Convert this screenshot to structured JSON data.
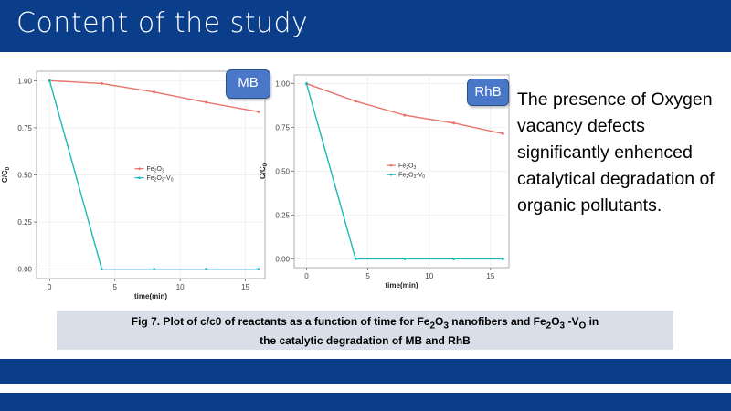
{
  "slide": {
    "title": "Content of the study",
    "side_text": "The presence of Oxygen vacancy defects significantly enhenced catalytical degradation of organic pollutants.",
    "caption_line1_parts": [
      "Fig 7. Plot of c/c0 of reactants as a function of time for Fe",
      "2",
      "O",
      "3",
      " nanofibers and Fe",
      "2",
      "O",
      "3",
      " -V",
      "O",
      " in"
    ],
    "caption_line2": "the catalytic degradation of MB and RhB"
  },
  "colors": {
    "header": "#0a3d8a",
    "fe2o3": "#e8736c",
    "fe2o3_vo": "#1fb8b8",
    "tag": "#4a78c8",
    "caption_bg": "#d8dfe8"
  },
  "chart_data": [
    {
      "type": "line",
      "tag": "MB",
      "xlabel": "time(min)",
      "ylabel_main": "C/C",
      "ylabel_sub": "0",
      "xlim": [
        -1,
        16.5
      ],
      "ylim": [
        -0.05,
        1.05
      ],
      "xticks": [
        0,
        5,
        10,
        15
      ],
      "yticks": [
        0.0,
        0.25,
        0.5,
        0.75,
        1.0
      ],
      "ytick_labels": [
        "0.00",
        "0.25",
        "0.50",
        "0.75",
        "1.00"
      ],
      "legend_position": "center",
      "grid": true,
      "series": [
        {
          "name": "Fe2O3",
          "label_parts": [
            "Fe",
            "2",
            "O",
            "3"
          ],
          "x": [
            0,
            4,
            8,
            12,
            16
          ],
          "y": [
            1.0,
            0.985,
            0.94,
            0.885,
            0.835
          ]
        },
        {
          "name": "Fe2O3-V0",
          "label_parts": [
            "Fe",
            "2",
            "O",
            "3",
            "-V",
            "0"
          ],
          "x": [
            0,
            4,
            8,
            12,
            16
          ],
          "y": [
            1.0,
            0.0,
            0.0,
            0.0,
            0.0
          ]
        }
      ]
    },
    {
      "type": "line",
      "tag": "RhB",
      "xlabel": "time(min)",
      "ylabel_main": "C/C",
      "ylabel_sub": "0",
      "xlim": [
        -1,
        16.5
      ],
      "ylim": [
        -0.05,
        1.05
      ],
      "xticks": [
        0,
        5,
        10,
        15
      ],
      "yticks": [
        0.0,
        0.25,
        0.5,
        0.75,
        1.0
      ],
      "ytick_labels": [
        "0.00",
        "0.25",
        "0.50",
        "0.75",
        "1.00"
      ],
      "legend_position": "center",
      "grid": true,
      "series": [
        {
          "name": "Fe2O3",
          "label_parts": [
            "Fe",
            "2",
            "O",
            "3"
          ],
          "x": [
            0,
            4,
            8,
            12,
            16
          ],
          "y": [
            1.0,
            0.9,
            0.82,
            0.775,
            0.715
          ]
        },
        {
          "name": "Fe2O3-V0",
          "label_parts": [
            "Fe",
            "2",
            "O",
            "3",
            "-V",
            "0"
          ],
          "x": [
            0,
            4,
            8,
            12,
            16
          ],
          "y": [
            1.0,
            0.0,
            0.0,
            0.0,
            0.0
          ]
        }
      ]
    }
  ]
}
